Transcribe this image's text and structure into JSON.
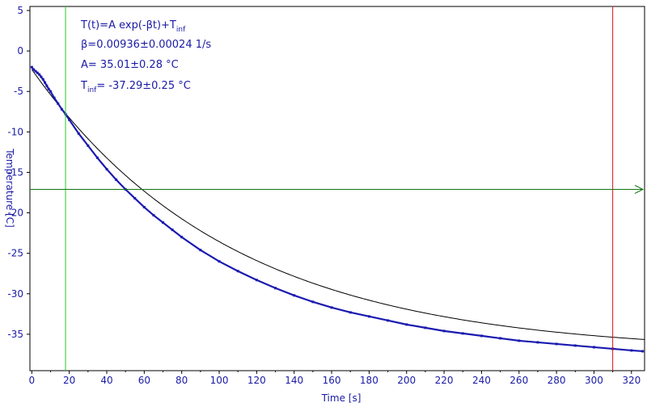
{
  "chart_data": {
    "type": "scatter",
    "xlabel": "Time [s]",
    "ylabel": "Temperature [C]",
    "xlim": [
      -1,
      327
    ],
    "ylim": [
      -39.5,
      5.5
    ],
    "x_ticks": [
      0,
      20,
      40,
      60,
      80,
      100,
      120,
      140,
      160,
      180,
      200,
      220,
      240,
      260,
      280,
      300,
      320
    ],
    "y_ticks": [
      5,
      0,
      -5,
      -10,
      -15,
      -20,
      -25,
      -30,
      -35
    ],
    "grid": false,
    "fit": {
      "model_text": "T(t)=A exp(-βt)+T",
      "model_sub": "inf",
      "beta_text": "β=0.00936±0.00024 1/s",
      "A_text": "A= 35.01±0.28 °C",
      "tinf_main": "T",
      "tinf_sub": "inf",
      "tinf_rest": "= -37.29±0.25 °C",
      "beta": 0.00936,
      "A": 35.01,
      "T_inf": -37.29,
      "x_range": [
        0,
        327
      ]
    },
    "markers": {
      "green_vertical_x": 18,
      "red_vertical_x": 310,
      "horizontal_y": -17.1
    },
    "series": [
      {
        "x": [
          0,
          1,
          2,
          3,
          4,
          5,
          6,
          7,
          8,
          9,
          10,
          12,
          14,
          16,
          18,
          20,
          25,
          30,
          35,
          40,
          45,
          50,
          55,
          60,
          65,
          70,
          75,
          80,
          90,
          100,
          110,
          120,
          130,
          140,
          150,
          160,
          170,
          180,
          190,
          200,
          210,
          220,
          230,
          240,
          250,
          260,
          270,
          280,
          290,
          300,
          310,
          320,
          326
        ],
        "y": [
          -2.0,
          -2.3,
          -2.5,
          -2.7,
          -2.9,
          -3.2,
          -3.5,
          -3.9,
          -4.3,
          -4.7,
          -5.0,
          -5.8,
          -6.5,
          -7.2,
          -7.8,
          -8.5,
          -10.2,
          -11.7,
          -13.2,
          -14.6,
          -15.9,
          -17.1,
          -18.2,
          -19.3,
          -20.3,
          -21.2,
          -22.1,
          -23.0,
          -24.6,
          -26.0,
          -27.2,
          -28.3,
          -29.3,
          -30.2,
          -31.0,
          -31.7,
          -32.3,
          -32.8,
          -33.3,
          -33.8,
          -34.2,
          -34.6,
          -34.9,
          -35.2,
          -35.5,
          -35.8,
          -36.0,
          -36.2,
          -36.4,
          -36.6,
          -36.8,
          -37.0,
          -37.1
        ]
      }
    ]
  }
}
